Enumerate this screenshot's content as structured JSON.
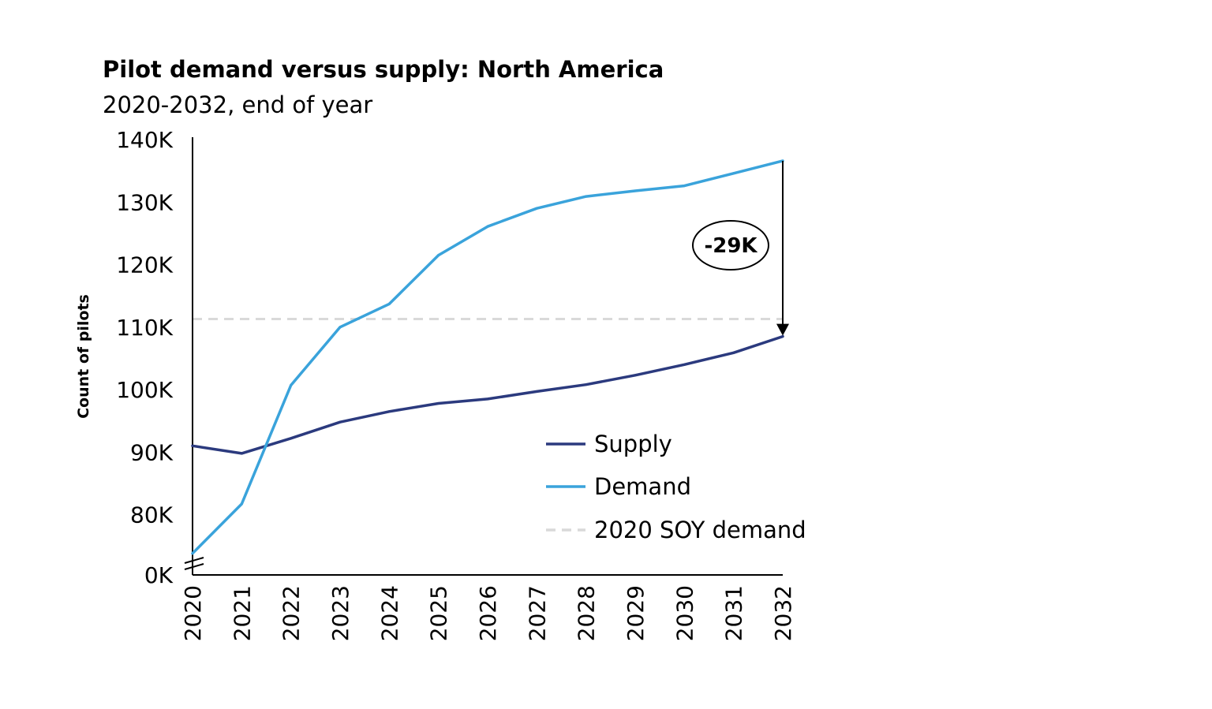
{
  "chart_data": {
    "type": "line",
    "title": "Pilot demand versus supply: North America",
    "subtitle": "2020-2032, end of year",
    "ylabel": "Count of pilots",
    "xlabel": "",
    "x": [
      "2020",
      "2021",
      "2022",
      "2023",
      "2024",
      "2025",
      "2026",
      "2027",
      "2028",
      "2029",
      "2030",
      "2031",
      "2032"
    ],
    "y_ticks": [
      {
        "label": "0K",
        "value": 0
      },
      {
        "label": "80K",
        "value": 80000
      },
      {
        "label": "90K",
        "value": 90000
      },
      {
        "label": "100K",
        "value": 100000
      },
      {
        "label": "110K",
        "value": 110000
      },
      {
        "label": "120K",
        "value": 120000
      },
      {
        "label": "130K",
        "value": 130000
      },
      {
        "label": "140K",
        "value": 140000
      }
    ],
    "ylim": [
      73000,
      140000
    ],
    "axis_break": true,
    "series": [
      {
        "name": "Supply",
        "color": "#2b3a7e",
        "values": [
          91000,
          89800,
          92200,
          94800,
          96500,
          97800,
          98500,
          99700,
          100800,
          102300,
          104000,
          105900,
          108500
        ]
      },
      {
        "name": "Demand",
        "color": "#3aa3db",
        "values": [
          73800,
          81700,
          100700,
          110000,
          113700,
          121500,
          126100,
          129000,
          130900,
          131800,
          132600,
          134600,
          136600
        ]
      }
    ],
    "reference_line": {
      "name": "2020 SOY demand",
      "value": 111300,
      "color": "#d9d9d9",
      "style": "dashed"
    },
    "annotation": {
      "label": "-29K",
      "from_value": 136600,
      "to_value": 108500,
      "at": "2032"
    },
    "legend_position": "lower-right",
    "grid": false
  }
}
